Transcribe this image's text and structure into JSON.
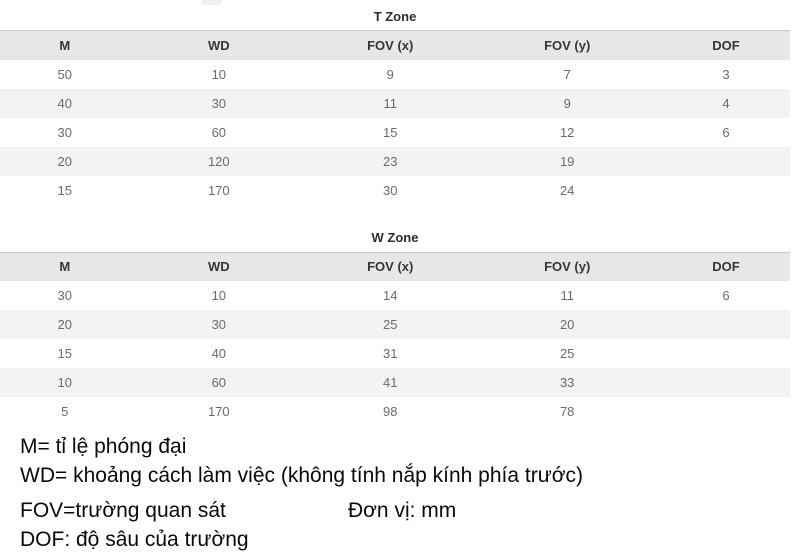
{
  "tables": [
    {
      "title": "T Zone",
      "columns": [
        "M",
        "WD",
        "FOV (x)",
        "FOV (y)",
        "DOF"
      ],
      "rows": [
        [
          "50",
          "10",
          "9",
          "7",
          "3"
        ],
        [
          "40",
          "30",
          "11",
          "9",
          "4"
        ],
        [
          "30",
          "60",
          "15",
          "12",
          "6"
        ],
        [
          "20",
          "120",
          "23",
          "19",
          ""
        ],
        [
          "15",
          "170",
          "30",
          "24",
          ""
        ]
      ]
    },
    {
      "title": "W Zone",
      "columns": [
        "M",
        "WD",
        "FOV (x)",
        "FOV (y)",
        "DOF"
      ],
      "rows": [
        [
          "30",
          "10",
          "14",
          "11",
          "6"
        ],
        [
          "20",
          "30",
          "25",
          "20",
          ""
        ],
        [
          "15",
          "40",
          "31",
          "25",
          ""
        ],
        [
          "10",
          "60",
          "41",
          "33",
          ""
        ],
        [
          "5",
          "170",
          "98",
          "78",
          ""
        ]
      ]
    }
  ],
  "legend": {
    "line_m": "M= tỉ lệ phóng đại",
    "line_wd": "WD= khoảng cách làm việc (không tính nắp kính phía trước)",
    "line_fov": "FOV=trường quan sát",
    "line_dof": "DOF: độ sâu của trường",
    "unit_note": "Đơn vị: mm"
  },
  "colors": {
    "header_bg": "#e8e6e6",
    "stripe_bg": "#f4f3f3",
    "header_text": "#35353c",
    "cell_text": "#6b6b6b",
    "title_text": "#2b2b2b",
    "legend_text": "#0a0a0a",
    "header_border": "#cbc9c9"
  }
}
